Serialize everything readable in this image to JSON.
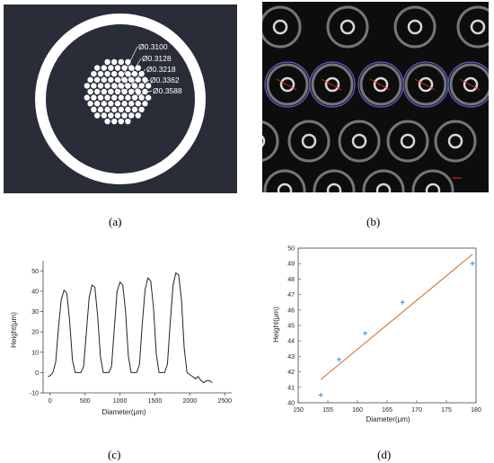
{
  "captions": {
    "a": "(a)",
    "b": "(b)",
    "c": "(c)",
    "d": "(d)"
  },
  "panel_a": {
    "labels": [
      "Ø0.3100",
      "Ø0.3128",
      "Ø0.3218",
      "Ø0.3362",
      "Ø0.3588"
    ],
    "colors": {
      "background": "#282d38",
      "ring": "#ffffff"
    }
  },
  "panel_b": {
    "colors": {
      "background": "#0d0d0d",
      "ring": "#c8c8c8",
      "highlight": "#6a5acd",
      "annotation": "#ff2020"
    }
  },
  "chart_data": [
    {
      "type": "line",
      "xlabel": "Diameter(μm)",
      "ylabel": "Height(μm)",
      "xlim": [
        -100,
        2600
      ],
      "ylim": [
        -10,
        55
      ],
      "xticks": [
        0,
        500,
        1000,
        1500,
        2000,
        2500
      ],
      "yticks": [
        -10,
        0,
        10,
        20,
        30,
        40,
        50
      ],
      "x": [
        -30,
        0,
        40,
        80,
        120,
        160,
        200,
        240,
        280,
        320,
        360,
        400,
        440,
        480,
        520,
        560,
        600,
        640,
        680,
        720,
        760,
        800,
        840,
        880,
        920,
        960,
        1000,
        1040,
        1080,
        1120,
        1160,
        1200,
        1240,
        1280,
        1320,
        1360,
        1400,
        1440,
        1480,
        1520,
        1560,
        1600,
        1640,
        1680,
        1720,
        1760,
        1800,
        1840,
        1880,
        1920,
        1960,
        2000,
        2040,
        2080,
        2120,
        2160,
        2200,
        2240,
        2280,
        2320
      ],
      "y": [
        -2,
        -1.5,
        0,
        5,
        22,
        36,
        40.5,
        39,
        25,
        6,
        0,
        0,
        0,
        3,
        20,
        37,
        43,
        42,
        28,
        8,
        0,
        0,
        0,
        3,
        22,
        40,
        44.5,
        43,
        30,
        8,
        0,
        0,
        0,
        4,
        24,
        41,
        46.5,
        45,
        32,
        9,
        0,
        0,
        0,
        4,
        25,
        43,
        49,
        48,
        36,
        12,
        0,
        -1,
        -2,
        -3,
        -2,
        -4,
        -5,
        -4,
        -4,
        -5
      ]
    },
    {
      "type": "scatter",
      "xlabel": "Diameter(μm)",
      "ylabel": "Height(μm)",
      "xlim": [
        150,
        180
      ],
      "ylim": [
        40,
        50
      ],
      "xticks": [
        150,
        155,
        160,
        165,
        170,
        175,
        180
      ],
      "yticks": [
        40,
        41,
        42,
        43,
        44,
        45,
        46,
        47,
        48,
        49,
        50
      ],
      "series": [
        {
          "x": [
            153.8,
            156.9,
            161.3,
            167.6,
            179.4
          ],
          "y": [
            40.5,
            42.8,
            44.5,
            46.5,
            49.0
          ]
        }
      ],
      "fit_line": {
        "x": [
          153.8,
          179.4
        ],
        "y": [
          41.5,
          49.6
        ]
      },
      "colors": {
        "points": "#3a8fd9",
        "fit": "#d2691e"
      }
    }
  ]
}
